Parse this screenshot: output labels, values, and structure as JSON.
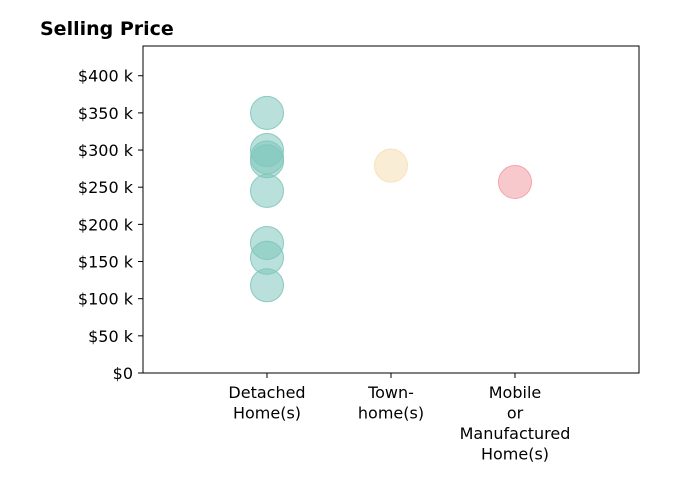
{
  "chart_data": {
    "type": "scatter",
    "title": "Selling Price",
    "xlabel": "",
    "ylabel": "",
    "categories": [
      [
        "Detached",
        "Home(s)"
      ],
      [
        "Town-",
        "home(s)"
      ],
      [
        "Mobile",
        "or",
        "Manufactured",
        "Home(s)"
      ]
    ],
    "y_ticks": [
      0,
      50000,
      100000,
      150000,
      200000,
      250000,
      300000,
      350000,
      400000
    ],
    "y_tick_labels": [
      "$0",
      "$50 k",
      "$100 k",
      "$150 k",
      "$200 k",
      "$250 k",
      "$300 k",
      "$350 k",
      "$400 k"
    ],
    "ylim": [
      0,
      440000
    ],
    "xlim": [
      -1,
      3
    ],
    "grid": false,
    "series": [
      {
        "category_index": 0,
        "color": "#7fc7bb",
        "values": [
          350000,
          300000,
          290000,
          285000,
          245000,
          175000,
          155000,
          118000
        ]
      },
      {
        "category_index": 1,
        "color": "#f6dfb3",
        "values": [
          279000
        ]
      },
      {
        "category_index": 2,
        "color": "#f39ca3",
        "values": [
          257000
        ]
      }
    ]
  }
}
